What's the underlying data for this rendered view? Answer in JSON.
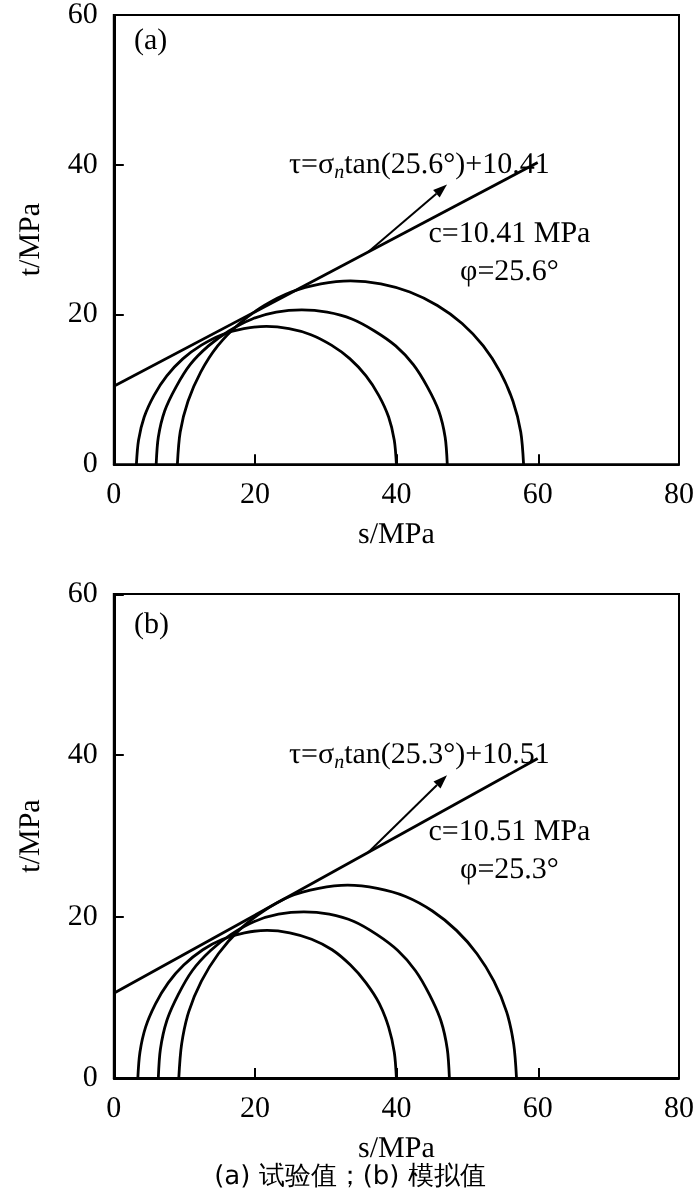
{
  "chart_data": [
    {
      "type": "line",
      "title": "(a)",
      "xlabel": "s/MPa",
      "ylabel": "t/MPa",
      "xlim": [
        0,
        80
      ],
      "xticks": [
        0,
        20,
        40,
        60,
        80
      ],
      "ylim": [
        0,
        60
      ],
      "yticks": [
        0,
        20,
        40,
        60
      ],
      "grid": false,
      "marker": "none",
      "annotations": [
        "τ=σ$_{n}$tan(25.6°)+10.41",
        "c=10.41 MPa\nφ=25.6°"
      ],
      "series": [
        {
          "color": "#000000",
          "x": [
            3.2,
            3.5,
            4.3,
            5.7,
            7.5,
            9.8,
            12.4,
            15.3,
            18.4,
            21.6,
            24.8,
            27.9,
            30.8,
            33.4,
            35.7,
            37.5,
            38.9,
            39.7,
            40.0
          ],
          "values": [
            0,
            3.2,
            6.3,
            9.2,
            11.8,
            14.1,
            15.9,
            17.3,
            18.1,
            18.4,
            18.1,
            17.3,
            15.9,
            14.1,
            11.8,
            9.2,
            6.3,
            3.2,
            0
          ]
        },
        {
          "color": "#000000",
          "x": [
            6.0,
            6.3,
            7.2,
            8.8,
            10.8,
            13.4,
            16.3,
            19.6,
            23.0,
            26.6,
            30.2,
            33.7,
            36.9,
            39.9,
            42.4,
            44.4,
            46.0,
            46.9,
            47.2
          ],
          "values": [
            0,
            3.6,
            7.1,
            10.3,
            13.3,
            15.8,
            17.8,
            19.4,
            20.3,
            20.6,
            20.3,
            19.4,
            17.8,
            15.8,
            13.3,
            10.3,
            7.1,
            3.6,
            0
          ]
        },
        {
          "color": "#000000",
          "x": [
            9.0,
            9.4,
            10.5,
            12.3,
            14.7,
            17.8,
            21.3,
            25.1,
            29.3,
            33.5,
            37.8,
            41.9,
            45.8,
            49.3,
            52.3,
            54.7,
            56.5,
            57.6,
            58.0
          ],
          "values": [
            0,
            4.3,
            8.4,
            12.3,
            15.8,
            18.8,
            21.2,
            23.0,
            24.1,
            24.5,
            24.1,
            23.0,
            21.2,
            18.8,
            15.8,
            12.3,
            8.4,
            4.3,
            0
          ]
        },
        {
          "color": "#000000",
          "x": [
            0,
            60
          ],
          "values": [
            10.4,
            40.3
          ]
        }
      ]
    },
    {
      "type": "line",
      "title": "(b)",
      "xlabel": "s/MPa",
      "ylabel": "t/MPa",
      "xlim": [
        0,
        80
      ],
      "xticks": [
        0,
        20,
        40,
        60,
        80
      ],
      "ylim": [
        0,
        60
      ],
      "yticks": [
        0,
        20,
        40,
        60
      ],
      "grid": false,
      "marker": "none",
      "annotations": [
        "τ=σ$_{n}$tan(25.3°)+10.51",
        "c=10.51 MPa\nφ=25.3°",
        "(a) 试验值；(b) 模拟值"
      ],
      "series": [
        {
          "color": "#000000",
          "x": [
            3.4,
            3.7,
            4.5,
            5.9,
            7.7,
            9.9,
            12.6,
            15.4,
            18.5,
            21.7,
            24.9,
            28.0,
            30.9,
            33.5,
            35.7,
            37.6,
            38.9,
            39.7,
            40.0
          ],
          "values": [
            0,
            3.2,
            6.3,
            9.2,
            11.8,
            14.0,
            15.9,
            17.2,
            18.0,
            18.3,
            18.0,
            17.2,
            15.9,
            14.0,
            11.8,
            9.2,
            6.3,
            3.2,
            0
          ]
        },
        {
          "color": "#000000",
          "x": [
            6.3,
            6.6,
            7.5,
            9.1,
            11.1,
            13.7,
            16.6,
            19.9,
            23.3,
            26.9,
            30.5,
            34.0,
            37.2,
            40.2,
            42.7,
            44.7,
            46.3,
            47.2,
            47.5
          ],
          "values": [
            0,
            3.6,
            7.1,
            10.3,
            13.3,
            15.8,
            17.8,
            19.4,
            20.3,
            20.6,
            20.3,
            19.4,
            17.8,
            15.8,
            13.3,
            10.3,
            7.1,
            3.6,
            0
          ]
        },
        {
          "color": "#000000",
          "x": [
            9.2,
            9.6,
            10.6,
            12.4,
            14.8,
            17.7,
            21.2,
            24.9,
            29.0,
            33.1,
            37.3,
            41.3,
            45.1,
            48.5,
            51.4,
            53.8,
            55.6,
            56.6,
            57.0
          ],
          "values": [
            0,
            4.2,
            8.2,
            12.0,
            15.4,
            18.3,
            20.7,
            22.5,
            23.5,
            23.9,
            23.5,
            22.5,
            20.7,
            18.3,
            15.4,
            12.0,
            8.2,
            4.2,
            0
          ]
        },
        {
          "color": "#000000",
          "x": [
            0,
            60
          ],
          "values": [
            10.5,
            39.6
          ]
        }
      ]
    }
  ]
}
